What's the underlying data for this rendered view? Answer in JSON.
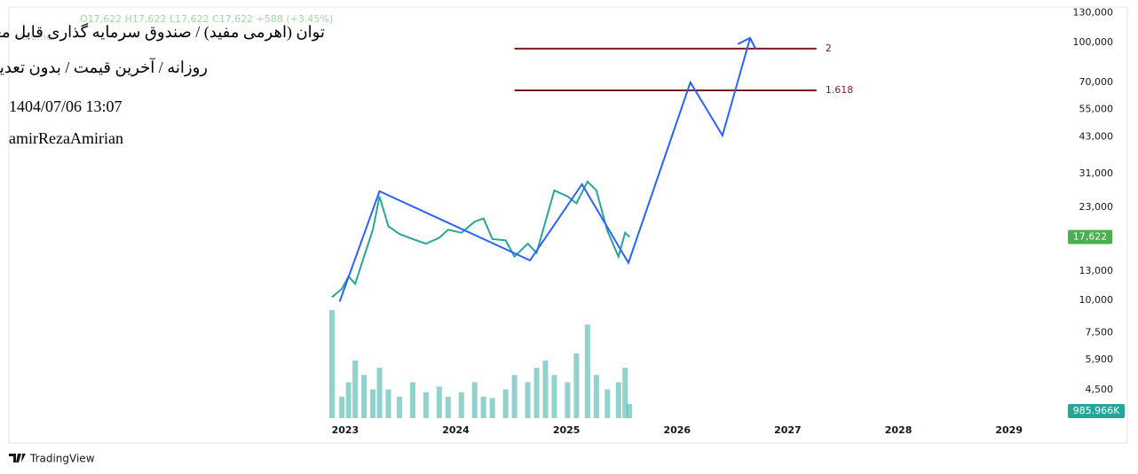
{
  "header": {
    "title": "توان (اهرمی مفید) / صندوق سرمایه گذاری قابل معامله",
    "subtitle": "روزانه / آخرین قیمت / بدون تعدیل",
    "datetime": "1404/07/06 13:07",
    "author": "amirRezaAmirian"
  },
  "brand": "TradingView",
  "chart_data": {
    "type": "line",
    "log_y": true,
    "ohlc_legend": "O17,622 H17,622 L17,622 C17,622 +588 (+3.45%)",
    "volume_title": "Volume",
    "xlim": [
      2020,
      2029.5
    ],
    "xticks": [
      2023,
      2024,
      2025,
      2026,
      2027,
      2028,
      2029
    ],
    "ylim": [
      3500,
      137000
    ],
    "yticks": [
      {
        "value": 130000,
        "label": "130,000"
      },
      {
        "value": 100000,
        "label": "100,000"
      },
      {
        "value": 70000,
        "label": "70,000"
      },
      {
        "value": 55000,
        "label": "55,000"
      },
      {
        "value": 43000,
        "label": "43,000"
      },
      {
        "value": 31000,
        "label": "31,000"
      },
      {
        "value": 23000,
        "label": "23,000"
      },
      {
        "value": 13000,
        "label": "13,000"
      },
      {
        "value": 10000,
        "label": "10,000"
      },
      {
        "value": 7500,
        "label": "7,500"
      },
      {
        "value": 5900,
        "label": "5,900"
      },
      {
        "value": 4500,
        "label": "4,500"
      }
    ],
    "y2lim": [
      0,
      8000
    ],
    "series": [
      {
        "color": "#26a69a",
        "last_value_label": "17,622",
        "label_color": "#4caf50",
        "x": [
          2022.88,
          2022.97,
          2023.03,
          2023.09,
          2023.17,
          2023.25,
          2023.31,
          2023.39,
          2023.49,
          2023.61,
          2023.73,
          2023.85,
          2023.93,
          2024.05,
          2024.17,
          2024.25,
          2024.33,
          2024.45,
          2024.53,
          2024.65,
          2024.73,
          2024.81,
          2024.89,
          2025.01,
          2025.09,
          2025.19,
          2025.27,
          2025.37,
          2025.47,
          2025.53,
          2025.57
        ],
        "values": [
          10300,
          11100,
          12400,
          11600,
          14800,
          18800,
          25300,
          19400,
          18100,
          17300,
          16600,
          17500,
          18800,
          18300,
          20200,
          20800,
          17300,
          17100,
          14800,
          16600,
          15300,
          20200,
          26700,
          25300,
          23800,
          28900,
          26700,
          18600,
          14800,
          18300,
          17622
        ]
      },
      {
        "color": "#2962ff",
        "x": [
          2022.95,
          2023.31,
          2024.67,
          2025.14,
          2025.56,
          2026.12,
          2026.41,
          2026.66
        ],
        "values": [
          9900,
          26500,
          14300,
          28200,
          14000,
          70000,
          43600,
          104000
        ]
      },
      {
        "type": "bar",
        "axis": "y2",
        "color": "#26a69a",
        "last_value_label": "985.966K",
        "x": [
          2022.88,
          2022.97,
          2023.03,
          2023.09,
          2023.17,
          2023.25,
          2023.31,
          2023.39,
          2023.49,
          2023.61,
          2023.73,
          2023.85,
          2023.93,
          2024.05,
          2024.17,
          2024.25,
          2024.33,
          2024.45,
          2024.53,
          2024.65,
          2024.73,
          2024.81,
          2024.89,
          2025.01,
          2025.09,
          2025.19,
          2025.27,
          2025.37,
          2025.47,
          2025.53,
          2025.57
        ],
        "values": [
          7500,
          1500,
          2500,
          4000,
          3000,
          2000,
          3500,
          2000,
          1500,
          2500,
          1800,
          2200,
          1500,
          1800,
          2500,
          1500,
          1400,
          2000,
          3000,
          2500,
          3500,
          4000,
          3000,
          2500,
          4500,
          6500,
          3000,
          2000,
          2500,
          3500,
          985.966
        ]
      }
    ],
    "levels": [
      {
        "value": 94600,
        "label": "2",
        "color": "#7b1a1f",
        "x": [
          2024.53,
          2027.26
        ]
      },
      {
        "value": 65200,
        "label": "1.618",
        "color": "#7b1a1f",
        "x": [
          2024.53,
          2027.26
        ]
      }
    ]
  }
}
